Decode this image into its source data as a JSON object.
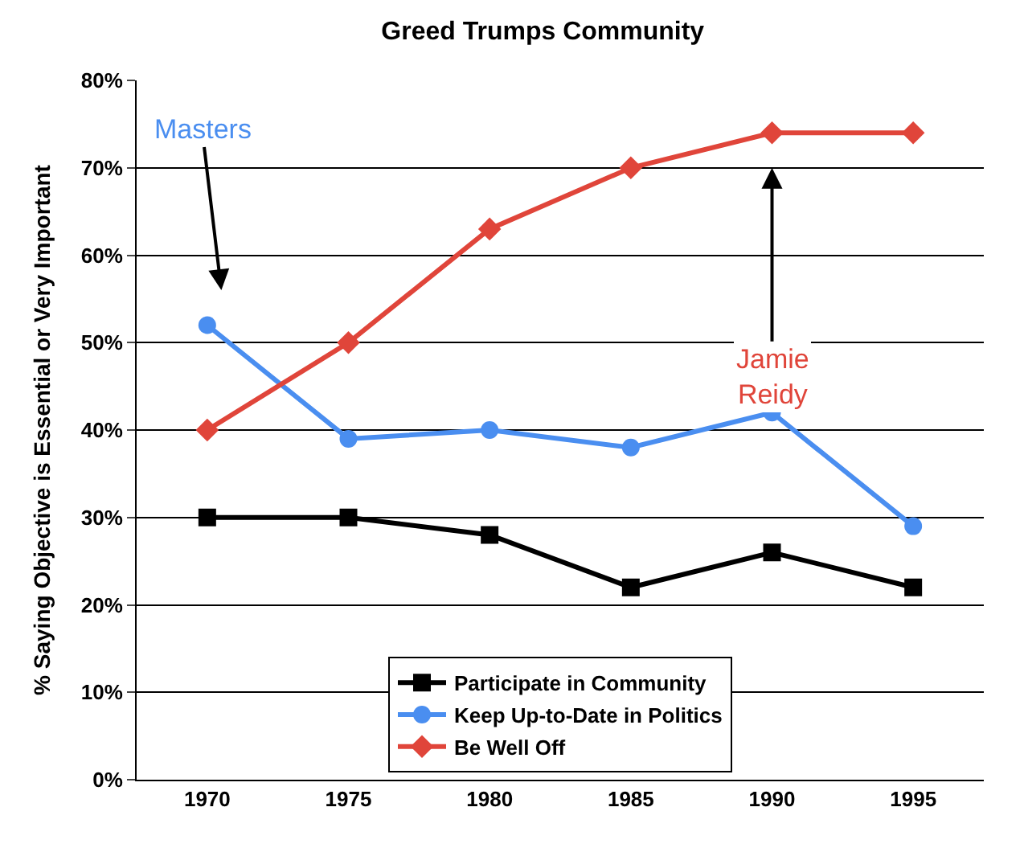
{
  "chart_data": {
    "type": "line",
    "title": "Greed Trumps Community",
    "ylabel": "% Saying Objective is Essential or Very Important",
    "categories": [
      "1970",
      "1975",
      "1980",
      "1985",
      "1990",
      "1995"
    ],
    "series": [
      {
        "name": "Participate in Community",
        "color": "#000000",
        "marker": "square",
        "values": [
          30,
          30,
          28,
          22,
          26,
          22
        ]
      },
      {
        "name": "Keep Up-to-Date in Politics",
        "color": "#4a8ef0",
        "marker": "circle",
        "values": [
          52,
          39,
          40,
          38,
          42,
          29
        ]
      },
      {
        "name": "Be Well Off",
        "color": "#e0453a",
        "marker": "diamond",
        "values": [
          40,
          50,
          63,
          70,
          74,
          74
        ]
      }
    ],
    "ylim": [
      0,
      80
    ],
    "yticks": [
      {
        "value": 0,
        "label": "0%"
      },
      {
        "value": 10,
        "label": "10%"
      },
      {
        "value": 20,
        "label": "20%"
      },
      {
        "value": 30,
        "label": "30%"
      },
      {
        "value": 40,
        "label": "40%"
      },
      {
        "value": 50,
        "label": "50%"
      },
      {
        "value": 60,
        "label": "60%"
      },
      {
        "value": 70,
        "label": "70%"
      },
      {
        "value": 80,
        "label": "80%"
      }
    ],
    "grid": "y",
    "legend": "bottom",
    "line_style": "solid",
    "annotations": [
      "Masters",
      "Jamie\nReidy"
    ]
  }
}
